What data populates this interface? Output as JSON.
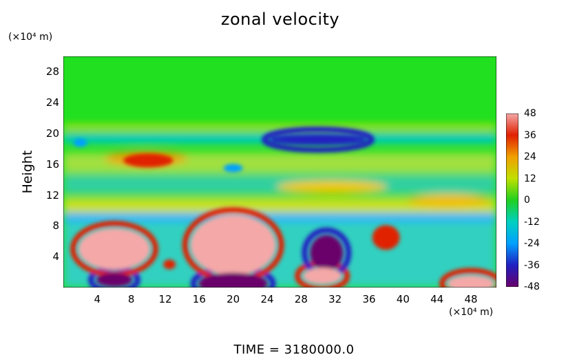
{
  "chart_data": {
    "type": "heatmap",
    "title": "zonal velocity",
    "ylabel": "Height",
    "y_unit": "(×10⁴ m)",
    "x_unit": "(×10⁴ m)",
    "x_ticks": [
      "4",
      "8",
      "12",
      "16",
      "20",
      "24",
      "28",
      "32",
      "36",
      "40",
      "44",
      "48"
    ],
    "y_ticks": [
      "4",
      "8",
      "12",
      "16",
      "20",
      "24",
      "28"
    ],
    "xlim": [
      0,
      51
    ],
    "ylim": [
      0,
      30
    ],
    "colorbar": {
      "ticks": [
        "48",
        "36",
        "24",
        "12",
        "0",
        "-12",
        "-24",
        "-36",
        "-48"
      ],
      "range": [
        -48,
        48
      ],
      "colormap": [
        "#6a006a",
        "#2020c0",
        "#00a0ff",
        "#00d0c0",
        "#20d020",
        "#c0e000",
        "#f0a000",
        "#e02000",
        "#f4a8a8"
      ]
    },
    "features": [
      {
        "x": 6,
        "y": 5,
        "value": 46
      },
      {
        "x": 20,
        "y": 5.5,
        "value": 48
      },
      {
        "x": 20,
        "y": 0.5,
        "value": -48
      },
      {
        "x": 6,
        "y": 1,
        "value": -46
      },
      {
        "x": 31,
        "y": 4.5,
        "value": -46
      },
      {
        "x": 30.5,
        "y": 1.5,
        "value": 46
      },
      {
        "x": 38,
        "y": 6.5,
        "value": 38
      },
      {
        "x": 48,
        "y": 0.5,
        "value": 46
      },
      {
        "x": 12.5,
        "y": 3,
        "value": 34
      },
      {
        "x": 30,
        "y": 19.2,
        "value": -42
      },
      {
        "x": 2,
        "y": 18.8,
        "value": -30
      },
      {
        "x": 10,
        "y": 16.5,
        "value": 30
      },
      {
        "x": 20,
        "y": 15.5,
        "value": -22
      }
    ],
    "background_value": 2
  },
  "footer": {
    "time": "TIME = 3180000.0"
  }
}
